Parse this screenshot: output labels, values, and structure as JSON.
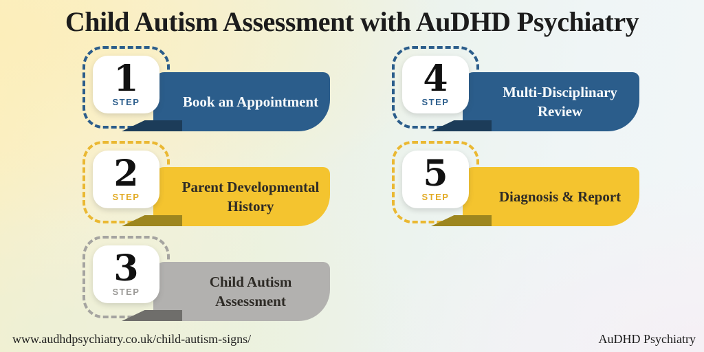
{
  "page": {
    "title": "Child Autism Assessment with AuDHD Psychiatry",
    "footer": {
      "url": "www.audhdpsychiatry.co.uk/child-autism-signs/",
      "brand": "AuDHD Psychiatry"
    }
  },
  "steps": [
    {
      "number": "1",
      "step_label": "STEP",
      "title": "Book an Appointment",
      "column": "left",
      "colors": {
        "ribbon": "#2b5d8b",
        "fold": "#1c3c59",
        "accent": "#2b5d8b",
        "dash": "#2b5d8b",
        "text": "#f7fafc"
      }
    },
    {
      "number": "2",
      "step_label": "STEP",
      "title": "Parent Developmental History",
      "column": "left",
      "colors": {
        "ribbon": "#f4c42f",
        "fold": "#9d861f",
        "accent": "#e2ab25",
        "dash": "#eab832",
        "text": "#2e2b26"
      }
    },
    {
      "number": "3",
      "step_label": "STEP",
      "title": "Child Autism Assessment",
      "column": "left",
      "colors": {
        "ribbon": "#b2b1af",
        "fold": "#6f6e6b",
        "accent": "#9b9a97",
        "dash": "#a5a4a0",
        "text": "#2e2b26"
      }
    },
    {
      "number": "4",
      "step_label": "STEP",
      "title": "Multi-Disciplinary Review",
      "column": "right",
      "colors": {
        "ribbon": "#2b5d8b",
        "fold": "#1c3c59",
        "accent": "#2b5d8b",
        "dash": "#2b5d8b",
        "text": "#f7fafc"
      }
    },
    {
      "number": "5",
      "step_label": "STEP",
      "title": "Diagnosis & Report",
      "column": "right",
      "colors": {
        "ribbon": "#f4c42f",
        "fold": "#9d861f",
        "accent": "#e2ab25",
        "dash": "#eab832",
        "text": "#2e2b26"
      }
    }
  ]
}
